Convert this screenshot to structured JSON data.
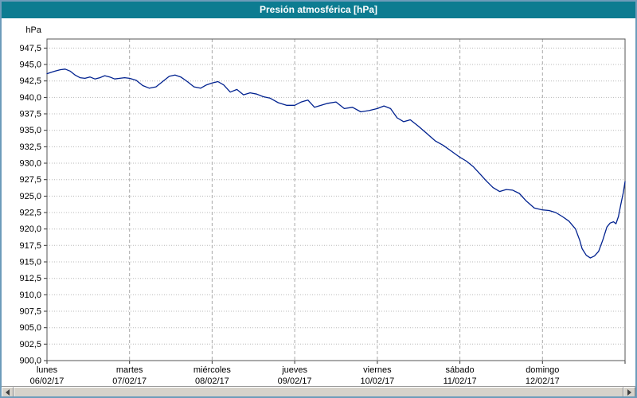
{
  "window": {
    "title": "Presión atmosférica [hPa]"
  },
  "chart_data": {
    "type": "line",
    "title": "Presión atmosférica [hPa]",
    "grid": true,
    "legend": "none",
    "y_axis": {
      "unit_label": "hPa",
      "min": 900.0,
      "max": 947.5,
      "step": 2.5,
      "tick_labels": [
        "947,5",
        "945,0",
        "942,5",
        "940,0",
        "937,5",
        "935,0",
        "932,5",
        "930,0",
        "927,5",
        "925,0",
        "922,5",
        "920,0",
        "917,5",
        "915,0",
        "912,5",
        "910,0",
        "907,5",
        "905,0",
        "902,5",
        "900,0"
      ]
    },
    "x_axis": {
      "days": [
        {
          "name": "lunes",
          "date": "06/02/17"
        },
        {
          "name": "martes",
          "date": "07/02/17"
        },
        {
          "name": "miércoles",
          "date": "08/02/17"
        },
        {
          "name": "jueves",
          "date": "09/02/17"
        },
        {
          "name": "viernes",
          "date": "10/02/17"
        },
        {
          "name": "sábado",
          "date": "11/02/17"
        },
        {
          "name": "domingo",
          "date": "12/02/17"
        }
      ]
    },
    "series": [
      {
        "name": "Presión atmosférica",
        "color": "#00218f",
        "points": [
          [
            0.0,
            943.6
          ],
          [
            0.05,
            943.8
          ],
          [
            0.1,
            944.0
          ],
          [
            0.16,
            944.2
          ],
          [
            0.22,
            944.3
          ],
          [
            0.28,
            944.0
          ],
          [
            0.34,
            943.4
          ],
          [
            0.4,
            943.0
          ],
          [
            0.46,
            942.9
          ],
          [
            0.52,
            943.1
          ],
          [
            0.58,
            942.8
          ],
          [
            0.64,
            943.0
          ],
          [
            0.7,
            943.3
          ],
          [
            0.76,
            943.1
          ],
          [
            0.82,
            942.8
          ],
          [
            0.88,
            942.9
          ],
          [
            0.94,
            943.0
          ],
          [
            1.0,
            942.9
          ],
          [
            1.08,
            942.6
          ],
          [
            1.16,
            941.8
          ],
          [
            1.24,
            941.4
          ],
          [
            1.32,
            941.6
          ],
          [
            1.4,
            942.4
          ],
          [
            1.48,
            943.2
          ],
          [
            1.55,
            943.4
          ],
          [
            1.62,
            943.1
          ],
          [
            1.7,
            942.4
          ],
          [
            1.78,
            941.6
          ],
          [
            1.86,
            941.4
          ],
          [
            1.93,
            941.9
          ],
          [
            2.0,
            942.2
          ],
          [
            2.07,
            942.4
          ],
          [
            2.14,
            941.9
          ],
          [
            2.22,
            940.8
          ],
          [
            2.3,
            941.2
          ],
          [
            2.38,
            940.4
          ],
          [
            2.46,
            940.7
          ],
          [
            2.54,
            940.5
          ],
          [
            2.62,
            940.1
          ],
          [
            2.7,
            939.9
          ],
          [
            2.8,
            939.2
          ],
          [
            2.9,
            938.8
          ],
          [
            3.0,
            938.8
          ],
          [
            3.08,
            939.3
          ],
          [
            3.16,
            939.6
          ],
          [
            3.24,
            938.5
          ],
          [
            3.32,
            938.8
          ],
          [
            3.4,
            939.1
          ],
          [
            3.5,
            939.3
          ],
          [
            3.6,
            938.3
          ],
          [
            3.7,
            938.5
          ],
          [
            3.8,
            937.8
          ],
          [
            3.9,
            938.0
          ],
          [
            4.0,
            938.3
          ],
          [
            4.08,
            938.7
          ],
          [
            4.16,
            938.3
          ],
          [
            4.24,
            936.9
          ],
          [
            4.32,
            936.3
          ],
          [
            4.4,
            936.6
          ],
          [
            4.5,
            935.6
          ],
          [
            4.6,
            934.5
          ],
          [
            4.7,
            933.4
          ],
          [
            4.8,
            932.7
          ],
          [
            4.9,
            931.8
          ],
          [
            5.0,
            930.9
          ],
          [
            5.08,
            930.3
          ],
          [
            5.16,
            929.5
          ],
          [
            5.24,
            928.4
          ],
          [
            5.32,
            927.3
          ],
          [
            5.4,
            926.3
          ],
          [
            5.48,
            925.7
          ],
          [
            5.56,
            926.0
          ],
          [
            5.64,
            925.9
          ],
          [
            5.72,
            925.4
          ],
          [
            5.8,
            924.3
          ],
          [
            5.9,
            923.2
          ],
          [
            6.0,
            922.9
          ],
          [
            6.08,
            922.8
          ],
          [
            6.16,
            922.5
          ],
          [
            6.24,
            921.9
          ],
          [
            6.32,
            921.2
          ],
          [
            6.4,
            920.0
          ],
          [
            6.45,
            918.3
          ],
          [
            6.48,
            917.0
          ],
          [
            6.53,
            916.0
          ],
          [
            6.58,
            915.6
          ],
          [
            6.63,
            915.9
          ],
          [
            6.68,
            916.6
          ],
          [
            6.73,
            918.3
          ],
          [
            6.78,
            920.3
          ],
          [
            6.82,
            920.9
          ],
          [
            6.86,
            921.1
          ],
          [
            6.89,
            920.8
          ],
          [
            6.92,
            921.9
          ],
          [
            6.95,
            923.8
          ],
          [
            6.98,
            925.6
          ],
          [
            7.0,
            927.2
          ]
        ]
      }
    ]
  }
}
